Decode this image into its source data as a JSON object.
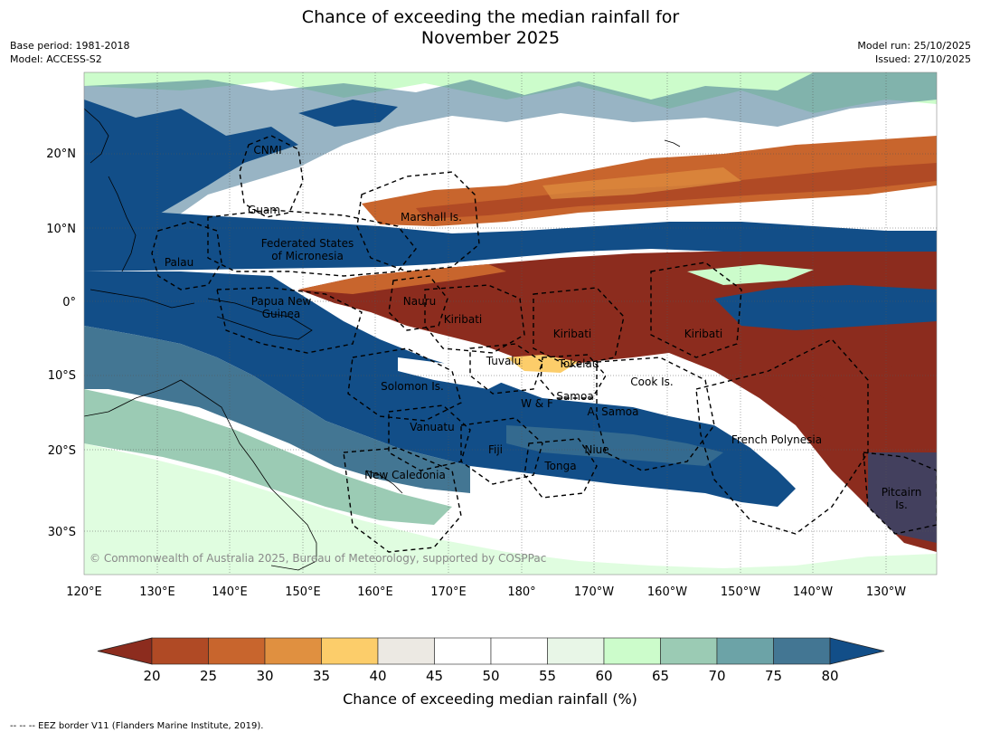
{
  "title": {
    "line1": "Chance of exceeding the median rainfall for",
    "line2": "November 2025"
  },
  "meta": {
    "base_period": "Base period: 1981-2018",
    "model": "Model: ACCESS-S2",
    "model_run": "Model run: 25/10/2025",
    "issued": "Issued: 27/10/2025"
  },
  "map": {
    "copyright": "© Commonwealth of Australia 2025, Bureau of Meteorology, supported by COSPPac",
    "lon_labels": [
      "120°E",
      "130°E",
      "140°E",
      "150°E",
      "160°E",
      "170°E",
      "180°",
      "170°W",
      "160°W",
      "150°W",
      "140°W",
      "130°W"
    ],
    "lat_labels": [
      "20°N",
      "10°N",
      "0°",
      "10°S",
      "20°S",
      "30°S"
    ],
    "places": [
      {
        "name": "CNMI",
        "lines": [
          "CNMI"
        ]
      },
      {
        "name": "Guam",
        "lines": [
          "Guam"
        ]
      },
      {
        "name": "Marshall Is.",
        "lines": [
          "Marshall Is."
        ]
      },
      {
        "name": "Federated States of Micronesia",
        "lines": [
          "Federated States",
          "of Micronesia"
        ]
      },
      {
        "name": "Palau",
        "lines": [
          "Palau"
        ]
      },
      {
        "name": "Papua New Guinea",
        "lines": [
          "Papua New",
          "Guinea"
        ]
      },
      {
        "name": "Nauru",
        "lines": [
          "Nauru"
        ]
      },
      {
        "name": "Kiribati (west)",
        "lines": [
          "Kiribati"
        ]
      },
      {
        "name": "Kiribati (central)",
        "lines": [
          "Kiribati"
        ]
      },
      {
        "name": "Kiribati (east)",
        "lines": [
          "Kiribati"
        ]
      },
      {
        "name": "Tuvalu",
        "lines": [
          "Tuvalu"
        ]
      },
      {
        "name": "Tokelau",
        "lines": [
          "Tokelau"
        ]
      },
      {
        "name": "Cook Is.",
        "lines": [
          "Cook Is."
        ]
      },
      {
        "name": "Solomon Is.",
        "lines": [
          "Solomon Is."
        ]
      },
      {
        "name": "Samoa",
        "lines": [
          "Samoa"
        ]
      },
      {
        "name": "W & F",
        "lines": [
          "W & F"
        ]
      },
      {
        "name": "A. Samoa",
        "lines": [
          "A. Samoa"
        ]
      },
      {
        "name": "Vanuatu",
        "lines": [
          "Vanuatu"
        ]
      },
      {
        "name": "Fiji",
        "lines": [
          "Fiji"
        ]
      },
      {
        "name": "Niue",
        "lines": [
          "Niue"
        ]
      },
      {
        "name": "Tonga",
        "lines": [
          "Tonga"
        ]
      },
      {
        "name": "New Caledonia",
        "lines": [
          "New Caledonia"
        ]
      },
      {
        "name": "French Polynesia",
        "lines": [
          "French Polynesia"
        ]
      },
      {
        "name": "Pitcairn Is.",
        "lines": [
          "Pitcairn",
          "Is."
        ]
      }
    ]
  },
  "colorbar": {
    "title": "Chance of exceeding median rainfall (%)",
    "ticks": [
      "20",
      "25",
      "30",
      "35",
      "40",
      "45",
      "50",
      "55",
      "60",
      "65",
      "70",
      "75",
      "80"
    ],
    "colors": [
      "#8c2c1e",
      "#b04a25",
      "#c8652d",
      "#e09040",
      "#fccd6a",
      "#ece9e3",
      "#ffffff",
      "#ffffff",
      "#e8f6e7",
      "#ccfccb",
      "#9bcbb4",
      "#6ca3a7",
      "#437693",
      "#124e88"
    ]
  },
  "footnote": "--  --  -- EEZ border V11 (Flanders Marine Institute, 2019)."
}
